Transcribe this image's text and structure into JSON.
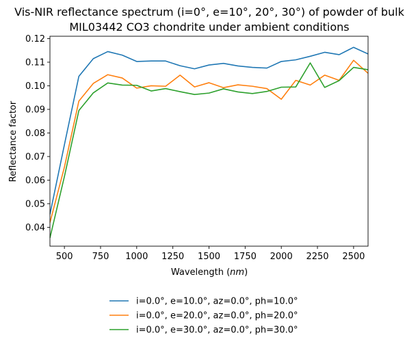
{
  "chart_data": {
    "type": "line",
    "title": "Vis-NIR reflectance spectrum (i=0°, e=10°, 20°, 30°) of powder of bulk\nMIL03442 CO3 chondrite under ambient conditions",
    "xlabel_main": "Wavelength (",
    "xlabel_unit": "nm",
    "xlabel_close": ")",
    "ylabel": "Reflectance factor",
    "xlim": [
      400,
      2600
    ],
    "ylim": [
      0.032,
      0.121
    ],
    "xticks": [
      500,
      750,
      1000,
      1250,
      1500,
      1750,
      2000,
      2250,
      2500
    ],
    "yticks": [
      0.04,
      0.05,
      0.06,
      0.07,
      0.08,
      0.09,
      0.1,
      0.11,
      0.12
    ],
    "ytick_labels": [
      "0.04",
      "0.05",
      "0.06",
      "0.07",
      "0.08",
      "0.09",
      "0.10",
      "0.11",
      "0.12"
    ],
    "grid": false,
    "legend_position": "below",
    "x": [
      400,
      500,
      600,
      700,
      800,
      900,
      1000,
      1100,
      1200,
      1300,
      1400,
      1500,
      1600,
      1700,
      1800,
      1900,
      2000,
      2100,
      2200,
      2300,
      2400,
      2500,
      2600
    ],
    "series": [
      {
        "name": "i=0.0°, e=10.0°, az=0.0°, ph=10.0°",
        "color": "#1f77b4",
        "values": [
          0.0455,
          0.075,
          0.104,
          0.1115,
          0.1145,
          0.113,
          0.1103,
          0.1105,
          0.1105,
          0.1085,
          0.1072,
          0.1088,
          0.1095,
          0.1084,
          0.1078,
          0.1075,
          0.1103,
          0.111,
          0.1125,
          0.1142,
          0.1132,
          0.1163,
          0.1135
        ]
      },
      {
        "name": "i=0.0°, e=20.0°, az=0.0°, ph=20.0°",
        "color": "#ff7f0e",
        "values": [
          0.042,
          0.0655,
          0.0935,
          0.101,
          0.1047,
          0.1033,
          0.099,
          0.1,
          0.0998,
          0.1045,
          0.0995,
          0.1013,
          0.0992,
          0.1004,
          0.0998,
          0.0988,
          0.0943,
          0.1023,
          0.1003,
          0.1045,
          0.1023,
          0.1108,
          0.1053
        ]
      },
      {
        "name": "i=0.0°, e=30.0°, az=0.0°, ph=30.0°",
        "color": "#2ca02c",
        "values": [
          0.0355,
          0.0615,
          0.0895,
          0.097,
          0.1012,
          0.1003,
          0.1002,
          0.0978,
          0.0988,
          0.0975,
          0.0963,
          0.0969,
          0.0987,
          0.0974,
          0.0967,
          0.0976,
          0.0994,
          0.0995,
          0.1097,
          0.0993,
          0.1022,
          0.1078,
          0.1068
        ]
      }
    ]
  }
}
